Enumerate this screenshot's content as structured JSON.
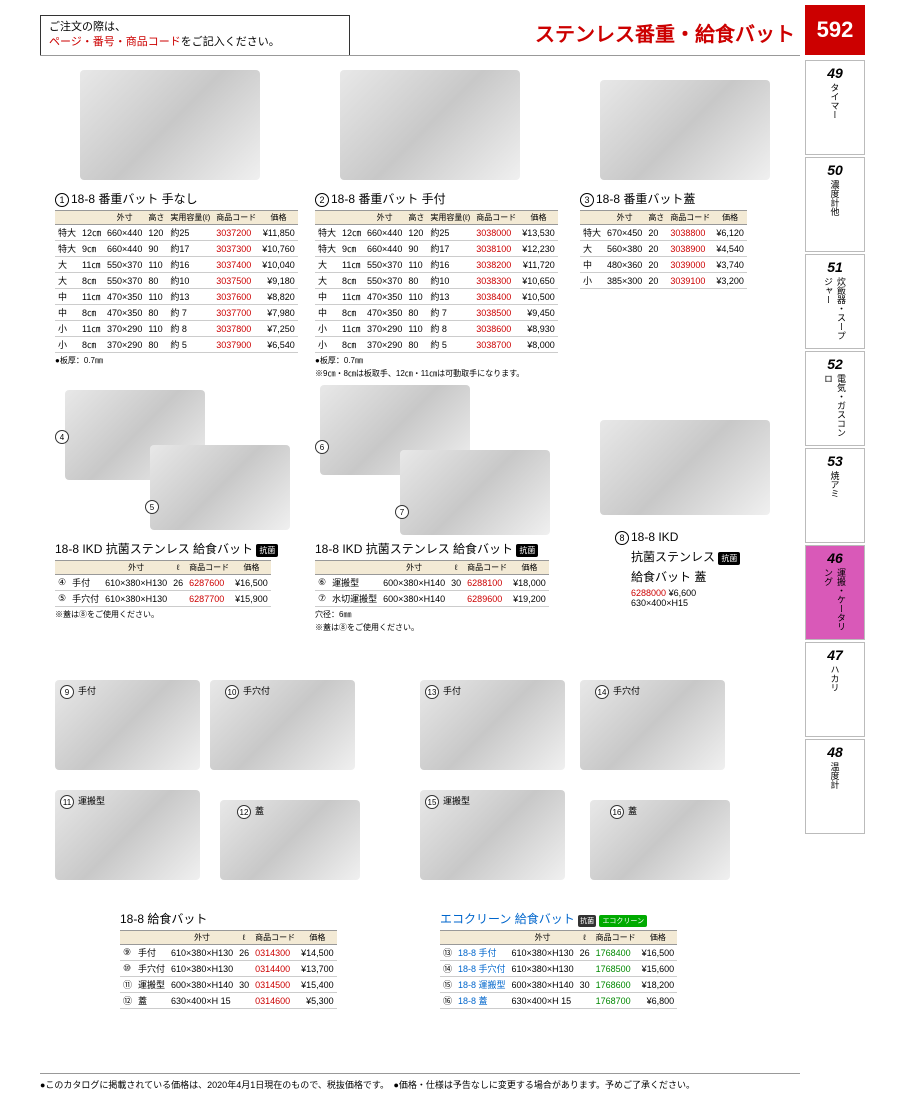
{
  "header": {
    "note_line1": "ご注文の際は、",
    "note_line2_red": "ページ・番号・商品コード",
    "note_line2_end": "をご記入ください。",
    "category": "ステンレス番重・給食バット",
    "page_num": "592"
  },
  "tabs": [
    {
      "num": "49",
      "label": "タイマー"
    },
    {
      "num": "50",
      "label": "濃度計他"
    },
    {
      "num": "51",
      "label": "炊飯器・スープジャー"
    },
    {
      "num": "52",
      "label": "電気・ガスコンロ"
    },
    {
      "num": "53",
      "label": "焼アミ"
    },
    {
      "num": "46",
      "label": "運搬・ケータリング",
      "active": true
    },
    {
      "num": "47",
      "label": "ハカリ"
    },
    {
      "num": "48",
      "label": "温度計"
    }
  ],
  "p1": {
    "num": "1",
    "title": "18-8 番重バット 手なし",
    "headers": [
      "",
      "",
      "外寸",
      "高さ",
      "実用容量(ℓ)",
      "商品コード",
      "価格"
    ],
    "rows": [
      [
        "特大",
        "12㎝",
        "660×440",
        "120",
        "約25",
        "3037200",
        "¥11,850"
      ],
      [
        "特大",
        "9㎝",
        "660×440",
        "90",
        "約17",
        "3037300",
        "¥10,760"
      ],
      [
        "大",
        "11㎝",
        "550×370",
        "110",
        "約16",
        "3037400",
        "¥10,040"
      ],
      [
        "大",
        "8㎝",
        "550×370",
        "80",
        "約10",
        "3037500",
        "¥9,180"
      ],
      [
        "中",
        "11㎝",
        "470×350",
        "110",
        "約13",
        "3037600",
        "¥8,820"
      ],
      [
        "中",
        "8㎝",
        "470×350",
        "80",
        "約 7",
        "3037700",
        "¥7,980"
      ],
      [
        "小",
        "11㎝",
        "370×290",
        "110",
        "約 8",
        "3037800",
        "¥7,250"
      ],
      [
        "小",
        "8㎝",
        "370×290",
        "80",
        "約 5",
        "3037900",
        "¥6,540"
      ]
    ],
    "note": "●板厚：0.7㎜"
  },
  "p2": {
    "num": "2",
    "title": "18-8 番重バット 手付",
    "rows": [
      [
        "特大",
        "12㎝",
        "660×440",
        "120",
        "約25",
        "3038000",
        "¥13,530"
      ],
      [
        "特大",
        "9㎝",
        "660×440",
        "90",
        "約17",
        "3038100",
        "¥12,230"
      ],
      [
        "大",
        "11㎝",
        "550×370",
        "110",
        "約16",
        "3038200",
        "¥11,720"
      ],
      [
        "大",
        "8㎝",
        "550×370",
        "80",
        "約10",
        "3038300",
        "¥10,650"
      ],
      [
        "中",
        "11㎝",
        "470×350",
        "110",
        "約13",
        "3038400",
        "¥10,500"
      ],
      [
        "中",
        "8㎝",
        "470×350",
        "80",
        "約 7",
        "3038500",
        "¥9,450"
      ],
      [
        "小",
        "11㎝",
        "370×290",
        "110",
        "約 8",
        "3038600",
        "¥8,930"
      ],
      [
        "小",
        "8㎝",
        "370×290",
        "80",
        "約 5",
        "3038700",
        "¥8,000"
      ]
    ],
    "note1": "●板厚：0.7㎜",
    "note2": "※9㎝・8㎝は板取手、12㎝・11㎝は可動取手になります。"
  },
  "p3": {
    "num": "3",
    "title": "18-8 番重バット蓋",
    "headers": [
      "",
      "外寸",
      "高さ",
      "商品コード",
      "価格"
    ],
    "rows": [
      [
        "特大",
        "670×450",
        "20",
        "3038800",
        "¥6,120"
      ],
      [
        "大",
        "560×380",
        "20",
        "3038900",
        "¥4,540"
      ],
      [
        "中",
        "480×360",
        "20",
        "3039000",
        "¥3,740"
      ],
      [
        "小",
        "385×300",
        "20",
        "3039100",
        "¥3,200"
      ]
    ]
  },
  "p45": {
    "title": "18-8 IKD 抗菌ステンレス 給食バット",
    "headers": [
      "",
      "",
      "外寸",
      "ℓ",
      "商品コード",
      "価格"
    ],
    "rows": [
      [
        "④",
        "手付",
        "610×380×H130",
        "26",
        "6287600",
        "¥16,500"
      ],
      [
        "⑤",
        "手穴付",
        "610×380×H130",
        "",
        "6287700",
        "¥15,900"
      ]
    ],
    "note": "※蓋は⑧をご使用ください。"
  },
  "p67": {
    "title": "18-8 IKD 抗菌ステンレス 給食バット",
    "rows": [
      [
        "⑥",
        "運搬型",
        "600×380×H140",
        "30",
        "6288100",
        "¥18,000"
      ],
      [
        "⑦",
        "水切運搬型",
        "600×380×H140",
        "",
        "6289600",
        "¥19,200"
      ]
    ],
    "note1": "穴径：6㎜",
    "note2": "※蓋は⑧をご使用ください。"
  },
  "p8": {
    "num": "8",
    "title1": "18-8 IKD",
    "title2": "抗菌ステンレス",
    "title3": "給食バット 蓋",
    "code": "6288000",
    "price": "¥6,600",
    "size": "630×400×H15"
  },
  "p912": {
    "title": "18-8 給食バット",
    "headers": [
      "",
      "",
      "外寸",
      "ℓ",
      "商品コード",
      "価格"
    ],
    "rows": [
      [
        "⑨",
        "手付",
        "610×380×H130",
        "26",
        "0314300",
        "¥14,500"
      ],
      [
        "⑩",
        "手穴付",
        "610×380×H130",
        "",
        "0314400",
        "¥13,700"
      ],
      [
        "⑪",
        "運搬型",
        "600×380×H140",
        "30",
        "0314500",
        "¥15,400"
      ],
      [
        "⑫",
        "蓋",
        "630×400×H 15",
        "",
        "0314600",
        "¥5,300"
      ]
    ]
  },
  "p1316": {
    "title": "エコクリーン 給食バット",
    "rows": [
      [
        "⑬",
        "18-8 手付",
        "610×380×H130",
        "26",
        "1768400",
        "¥16,500"
      ],
      [
        "⑭",
        "18-8 手穴付",
        "610×380×H130",
        "",
        "1768500",
        "¥15,600"
      ],
      [
        "⑮",
        "18-8 運搬型",
        "600×380×H140",
        "30",
        "1768600",
        "¥18,200"
      ],
      [
        "⑯",
        "18-8 蓋",
        "630×400×H 15",
        "",
        "1768700",
        "¥6,800"
      ]
    ]
  },
  "labels": {
    "l4": "4",
    "l5": "5",
    "l6": "6",
    "l7": "7",
    "l9": "9",
    "l10": "10",
    "l11": "11",
    "l12": "12",
    "l13": "13",
    "l14": "14",
    "l15": "15",
    "l16": "16",
    "t9": "手付",
    "t10": "手穴付",
    "t11": "運搬型",
    "t12": "蓋",
    "t13": "手付",
    "t14": "手穴付",
    "t15": "運搬型",
    "t16": "蓋"
  },
  "footer": "●このカタログに掲載されている価格は、2020年4月1日現在のもので、税抜価格です。　●価格・仕様は予告なしに変更する場合があります。予めご了承ください。"
}
